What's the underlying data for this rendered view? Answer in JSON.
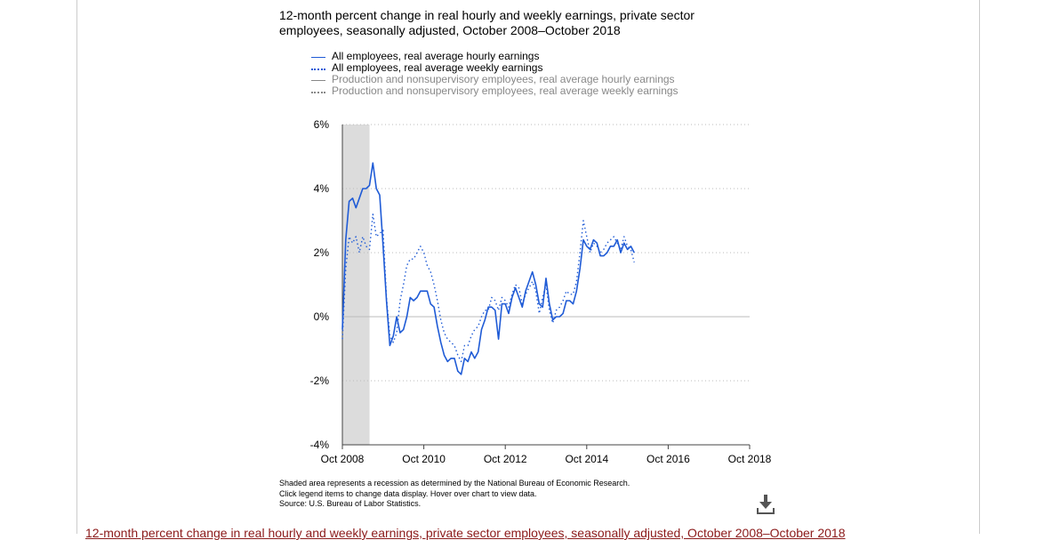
{
  "title": "12-month percent change in real hourly and weekly earnings, private sector employees, seasonally adjusted, October 2008–October 2018",
  "legend": [
    {
      "label": "All employees, real average hourly earnings",
      "color": "#1f5bd6",
      "style": "solid",
      "active": true
    },
    {
      "label": "All employees, real average weekly earnings",
      "color": "#1f5bd6",
      "style": "dotted",
      "active": true
    },
    {
      "label": "Production and nonsupervisory employees, real average hourly earnings",
      "color": "#888888",
      "style": "solid",
      "active": false
    },
    {
      "label": "Production and nonsupervisory employees, real average weekly earnings",
      "color": "#888888",
      "style": "dotted",
      "active": false
    }
  ],
  "notes": {
    "line1": "Shaded area represents a recession as determined by the National Bureau of Economic Research.",
    "line2": "Click legend items to change data display. Hover over chart to view data.",
    "line3": "Source: U.S. Bureau of Labor Statistics."
  },
  "download_icon": "download-icon",
  "bottom_title": "12-month percent change in real hourly and weekly earnings, private sector employees, seasonally adjusted, October 2008–October 2018",
  "chart_data": {
    "type": "line",
    "title": "12-month percent change in real hourly and weekly earnings, private sector employees, seasonally adjusted, October 2008–October 2018",
    "xlabel": "",
    "ylabel": "",
    "x_range": [
      "2008-10",
      "2018-10"
    ],
    "x_ticks": [
      "Oct 2008",
      "Oct 2010",
      "Oct 2012",
      "Oct 2014",
      "Oct 2016",
      "Oct 2018"
    ],
    "y_ticks": [
      "6%",
      "4%",
      "2%",
      "0%",
      "-2%",
      "-4%"
    ],
    "y_tick_values": [
      6,
      4,
      2,
      0,
      -2,
      -4
    ],
    "ylim": [
      -4,
      6
    ],
    "grid": true,
    "recession": {
      "start": "2008-10",
      "end": "2009-06"
    },
    "series": [
      {
        "name": "All employees, real average hourly earnings",
        "style": "solid",
        "x": [
          "2008-10",
          "2008-11",
          "2008-12",
          "2009-01",
          "2009-02",
          "2009-03",
          "2009-04",
          "2009-05",
          "2009-06",
          "2009-07",
          "2009-08",
          "2009-09",
          "2009-10",
          "2009-11",
          "2009-12",
          "2010-01",
          "2010-02",
          "2010-03",
          "2010-04",
          "2010-05",
          "2010-06",
          "2010-07",
          "2010-08",
          "2010-09",
          "2010-10",
          "2010-11",
          "2010-12",
          "2011-01",
          "2011-02",
          "2011-03",
          "2011-04",
          "2011-05",
          "2011-06",
          "2011-07",
          "2011-08",
          "2011-09",
          "2011-10",
          "2011-11",
          "2011-12",
          "2012-01",
          "2012-02",
          "2012-03",
          "2012-04",
          "2012-05",
          "2012-06",
          "2012-07",
          "2012-08",
          "2012-09",
          "2012-10",
          "2012-11",
          "2012-12",
          "2013-01",
          "2013-02",
          "2013-03",
          "2013-04",
          "2013-05",
          "2013-06",
          "2013-07",
          "2013-08",
          "2013-09",
          "2013-10",
          "2013-11",
          "2013-12",
          "2014-01",
          "2014-02",
          "2014-03",
          "2014-04",
          "2014-05",
          "2014-06",
          "2014-07",
          "2014-08",
          "2014-09",
          "2014-10",
          "2014-11",
          "2014-12",
          "2015-01",
          "2015-02",
          "2015-03",
          "2015-04",
          "2015-05",
          "2015-06",
          "2015-07",
          "2015-08",
          "2015-09",
          "2015-10",
          "2015-11",
          "2015-12"
        ],
        "values": [
          -0.4,
          2.4,
          3.6,
          3.7,
          3.4,
          3.7,
          4.0,
          4.0,
          4.1,
          4.8,
          4.0,
          3.8,
          2.2,
          0.5,
          -0.9,
          -0.6,
          0.0,
          -0.5,
          -0.4,
          0.0,
          0.6,
          0.5,
          0.6,
          0.8,
          0.8,
          0.8,
          0.4,
          0.3,
          -0.3,
          -0.8,
          -1.2,
          -1.4,
          -1.3,
          -1.3,
          -1.7,
          -1.8,
          -1.3,
          -1.4,
          -1.1,
          -1.3,
          -1.1,
          -0.4,
          -0.1,
          0.3,
          0.3,
          0.2,
          -0.7,
          0.4,
          0.4,
          0.1,
          0.6,
          0.9,
          0.6,
          0.3,
          0.8,
          1.1,
          1.4,
          1.0,
          0.4,
          0.3,
          1.2,
          0.4,
          -0.1,
          0.0,
          0.0,
          0.1,
          0.5,
          0.5,
          0.4,
          0.8,
          1.5,
          2.4,
          2.2,
          2.1,
          2.4,
          2.3,
          1.9,
          1.9,
          2.0,
          2.2,
          2.2,
          2.4,
          2.0,
          2.3,
          2.1,
          2.2,
          2.0
        ]
      },
      {
        "name": "All employees, real average weekly earnings",
        "style": "dotted",
        "x": [
          "2008-10",
          "2008-11",
          "2008-12",
          "2009-01",
          "2009-02",
          "2009-03",
          "2009-04",
          "2009-05",
          "2009-06",
          "2009-07",
          "2009-08",
          "2009-09",
          "2009-10",
          "2009-11",
          "2009-12",
          "2010-01",
          "2010-02",
          "2010-03",
          "2010-04",
          "2010-05",
          "2010-06",
          "2010-07",
          "2010-08",
          "2010-09",
          "2010-10",
          "2010-11",
          "2010-12",
          "2011-01",
          "2011-02",
          "2011-03",
          "2011-04",
          "2011-05",
          "2011-06",
          "2011-07",
          "2011-08",
          "2011-09",
          "2011-10",
          "2011-11",
          "2011-12",
          "2012-01",
          "2012-02",
          "2012-03",
          "2012-04",
          "2012-05",
          "2012-06",
          "2012-07",
          "2012-08",
          "2012-09",
          "2012-10",
          "2012-11",
          "2012-12",
          "2013-01",
          "2013-02",
          "2013-03",
          "2013-04",
          "2013-05",
          "2013-06",
          "2013-07",
          "2013-08",
          "2013-09",
          "2013-10",
          "2013-11",
          "2013-12",
          "2014-01",
          "2014-02",
          "2014-03",
          "2014-04",
          "2014-05",
          "2014-06",
          "2014-07",
          "2014-08",
          "2014-09",
          "2014-10",
          "2014-11",
          "2014-12",
          "2015-01",
          "2015-02",
          "2015-03",
          "2015-04",
          "2015-05",
          "2015-06",
          "2015-07",
          "2015-08",
          "2015-09",
          "2015-10",
          "2015-11",
          "2015-12"
        ],
        "values": [
          -0.7,
          1.5,
          2.5,
          2.3,
          2.5,
          2.0,
          2.5,
          2.2,
          2.1,
          3.2,
          2.5,
          2.6,
          2.7,
          0.6,
          -0.6,
          -0.8,
          -0.5,
          0.5,
          1.0,
          1.6,
          1.8,
          1.8,
          2.0,
          2.2,
          2.0,
          1.6,
          1.4,
          1.0,
          0.5,
          -0.1,
          -0.5,
          -0.7,
          -0.8,
          -0.9,
          -1.2,
          -1.4,
          -0.9,
          -0.9,
          -0.6,
          -0.4,
          -0.3,
          0.0,
          0.2,
          0.2,
          0.6,
          0.5,
          0.2,
          0.6,
          0.5,
          0.3,
          0.7,
          1.0,
          0.9,
          0.4,
          0.7,
          0.9,
          1.1,
          0.8,
          0.1,
          0.6,
          1.0,
          0.2,
          -0.2,
          0.2,
          0.3,
          0.5,
          0.8,
          0.7,
          0.7,
          1.1,
          2.0,
          3.0,
          2.5,
          2.0,
          2.3,
          2.2,
          2.0,
          2.1,
          2.3,
          2.4,
          2.5,
          2.3,
          2.1,
          2.5,
          2.2,
          2.1,
          1.7
        ]
      }
    ]
  }
}
